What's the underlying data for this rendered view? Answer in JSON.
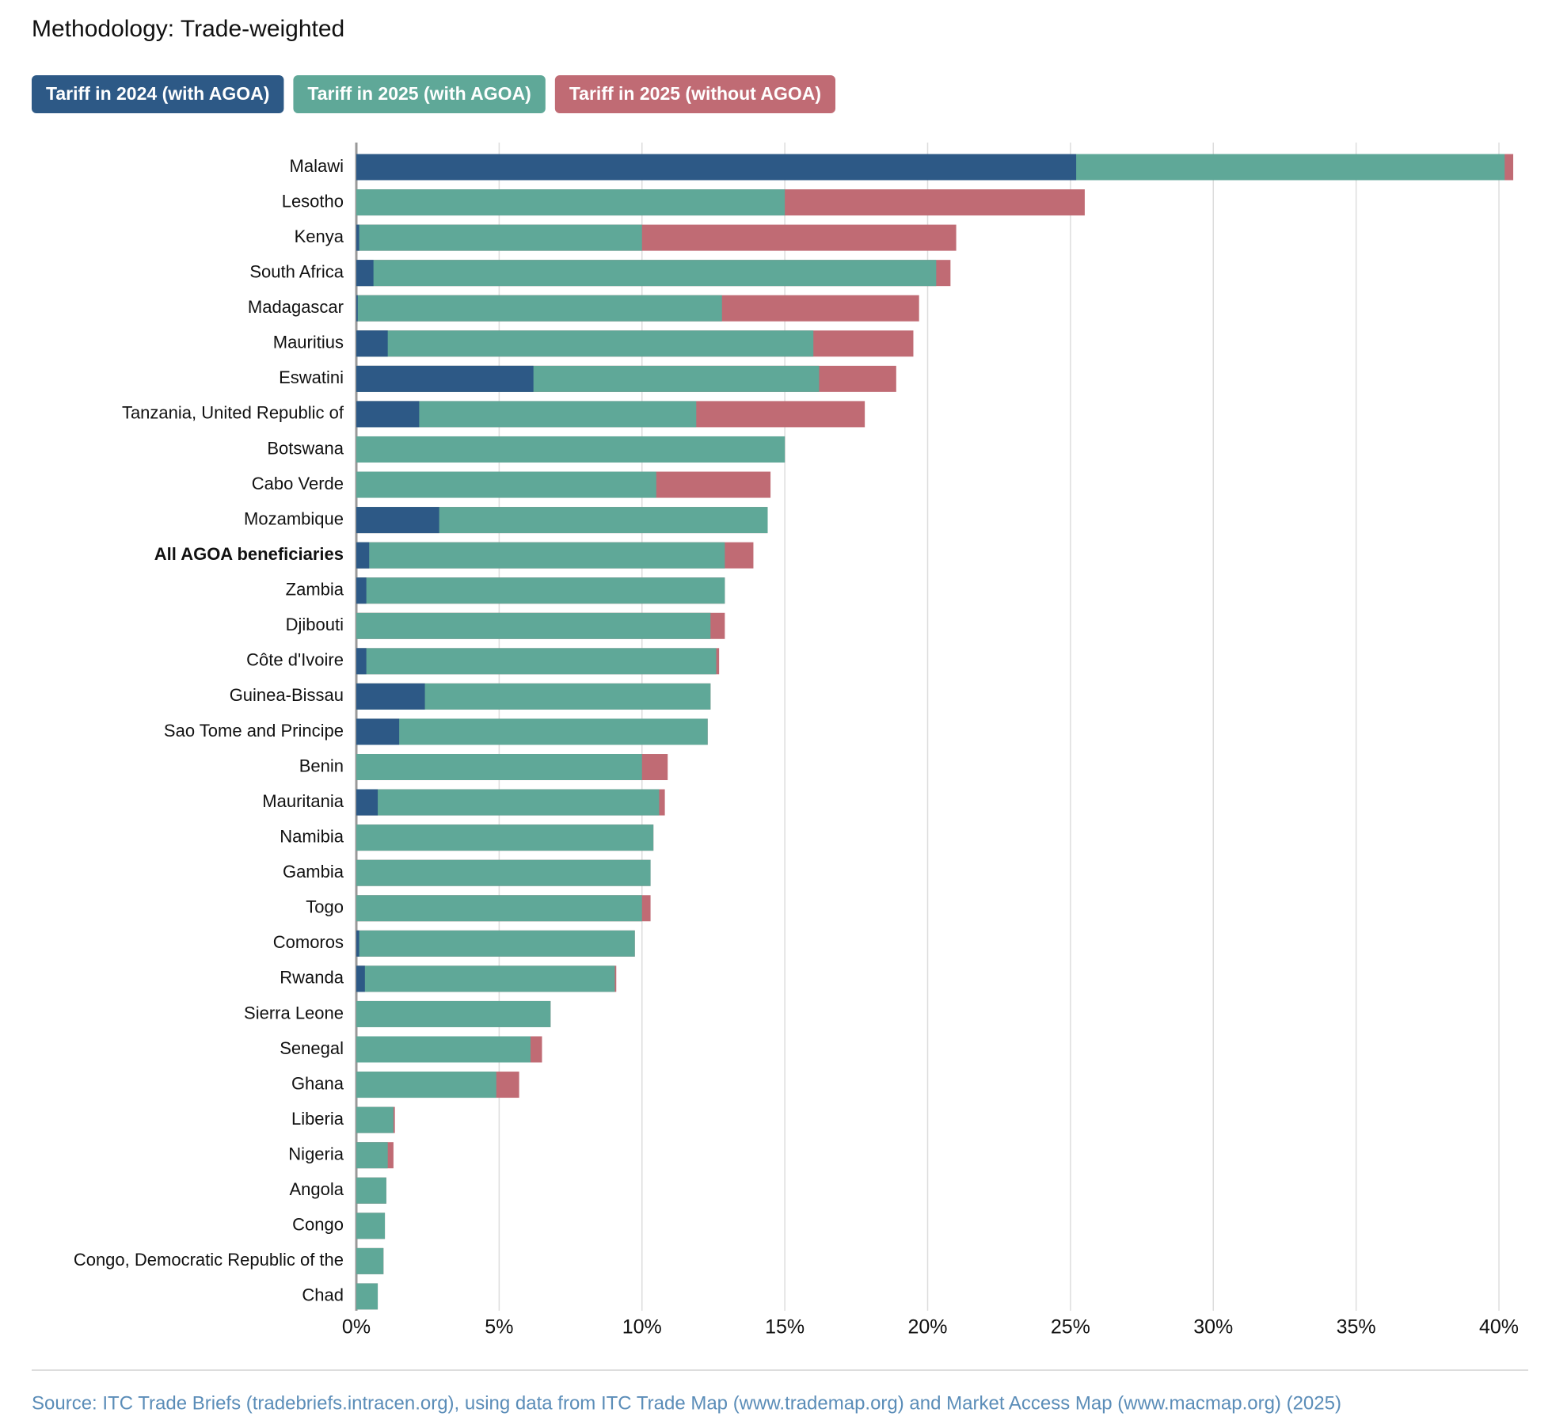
{
  "chart_data": {
    "type": "bar",
    "orientation": "horizontal",
    "title": "Methodology: Trade-weighted",
    "categories": [
      "Malawi",
      "Lesotho",
      "Kenya",
      "South Africa",
      "Madagascar",
      "Mauritius",
      "Eswatini",
      "Tanzania, United Republic of",
      "Botswana",
      "Cabo Verde",
      "Mozambique",
      "All AGOA beneficiaries",
      "Zambia",
      "Djibouti",
      "Côte d'Ivoire",
      "Guinea-Bissau",
      "Sao Tome and Principe",
      "Benin",
      "Mauritania",
      "Namibia",
      "Gambia",
      "Togo",
      "Comoros",
      "Rwanda",
      "Sierra Leone",
      "Senegal",
      "Ghana",
      "Liberia",
      "Nigeria",
      "Angola",
      "Congo",
      "Congo, Democratic Republic of the",
      "Chad"
    ],
    "series": [
      {
        "name": "Tariff in 2024 (with AGOA)",
        "color": "#2d5986",
        "values": [
          25.2,
          0,
          0.1,
          0.6,
          0.05,
          1.1,
          6.2,
          2.2,
          0,
          0,
          2.9,
          0.45,
          0.35,
          0,
          0.35,
          2.4,
          1.5,
          0,
          0.75,
          0,
          0,
          0,
          0.1,
          0.3,
          0,
          0,
          0,
          0,
          0,
          0,
          0,
          0,
          0
        ]
      },
      {
        "name": "Tariff in 2025 (with AGOA)",
        "color": "#5fa898",
        "values": [
          40.2,
          15.0,
          10.0,
          20.3,
          12.8,
          16.0,
          16.2,
          11.9,
          15.0,
          10.5,
          14.4,
          12.9,
          12.9,
          12.4,
          12.6,
          12.4,
          12.3,
          10.0,
          10.6,
          10.4,
          10.3,
          10.0,
          9.75,
          9.05,
          6.8,
          6.1,
          4.9,
          1.3,
          1.1,
          1.05,
          1.0,
          0.95,
          0.75
        ]
      },
      {
        "name": "Tariff in 2025 (without AGOA)",
        "color": "#c06b74",
        "values": [
          40.5,
          25.5,
          21.0,
          20.8,
          19.7,
          19.5,
          18.9,
          17.8,
          15.0,
          14.5,
          14.4,
          13.9,
          12.9,
          12.9,
          12.7,
          12.4,
          12.3,
          10.9,
          10.8,
          10.4,
          10.3,
          10.3,
          9.75,
          9.1,
          6.8,
          6.5,
          5.7,
          1.35,
          1.3,
          1.05,
          1.0,
          0.95,
          0.75
        ]
      }
    ],
    "xlim": [
      0,
      40.5
    ],
    "xticks": [
      {
        "value": 0,
        "label": "0%"
      },
      {
        "value": 5,
        "label": "5%"
      },
      {
        "value": 10,
        "label": "10%"
      },
      {
        "value": 15,
        "label": "15%"
      },
      {
        "value": 20,
        "label": "20%"
      },
      {
        "value": 25,
        "label": "25%"
      },
      {
        "value": 30,
        "label": "30%"
      },
      {
        "value": 35,
        "label": "35%"
      },
      {
        "value": 40,
        "label": "40%"
      }
    ],
    "grid": true,
    "source": "Source: ITC Trade Briefs (tradebriefs.intracen.org), using data from ITC Trade Map (www.trademap.org) and Market Access Map (www.macmap.org) (2025)"
  }
}
